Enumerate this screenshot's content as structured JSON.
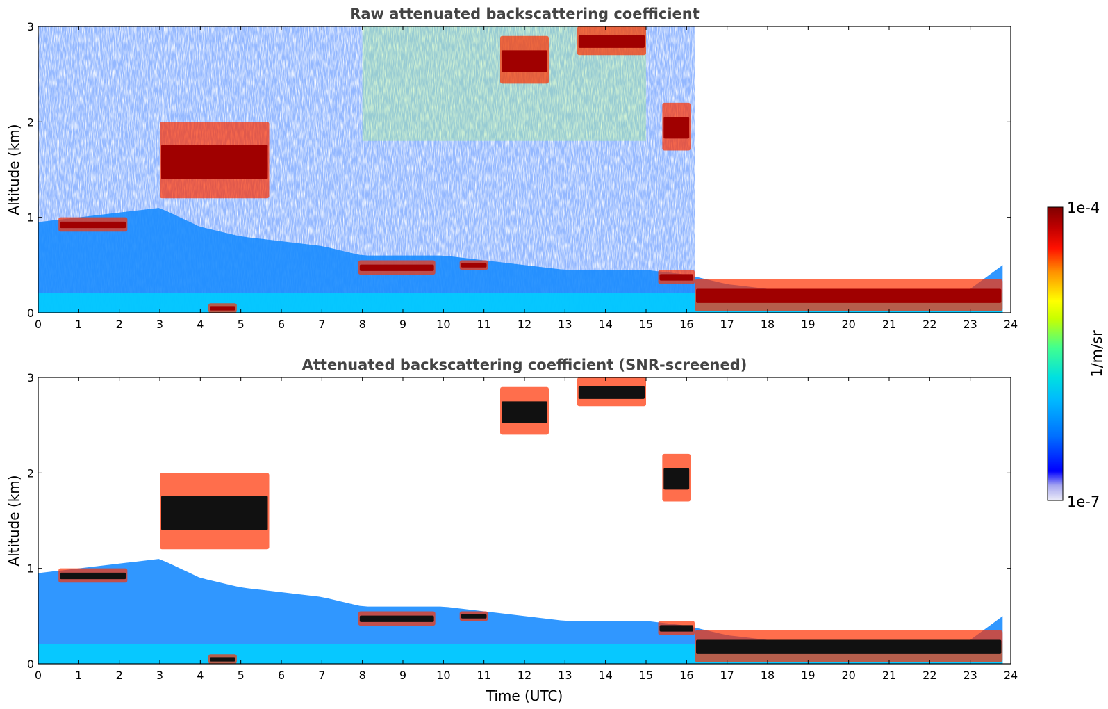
{
  "chart_data": [
    {
      "type": "heatmap",
      "title": "Raw attenuated backscattering coefficient",
      "xlabel": "",
      "ylabel": "Altitude (km)",
      "xlim": [
        0,
        24
      ],
      "ylim": [
        0,
        3
      ],
      "xticks": [
        "0",
        "1",
        "2",
        "3",
        "4",
        "5",
        "6",
        "7",
        "8",
        "9",
        "10",
        "11",
        "12",
        "13",
        "14",
        "15",
        "16",
        "17",
        "18",
        "19",
        "20",
        "21",
        "22",
        "23",
        "24"
      ],
      "yticks": [
        "0",
        "1",
        "2",
        "3"
      ],
      "color_scale": "log",
      "clim": [
        "1e-7",
        "1e-4"
      ],
      "features": {
        "boundary_layer_top_km": [
          [
            0,
            0.95
          ],
          [
            1,
            1.0
          ],
          [
            2,
            1.05
          ],
          [
            3,
            1.1
          ],
          [
            4,
            0.9
          ],
          [
            5,
            0.8
          ],
          [
            6,
            0.75
          ],
          [
            7,
            0.7
          ],
          [
            8,
            0.6
          ],
          [
            9,
            0.6
          ],
          [
            10,
            0.6
          ],
          [
            11,
            0.55
          ],
          [
            12,
            0.5
          ],
          [
            13,
            0.45
          ],
          [
            14,
            0.45
          ],
          [
            15,
            0.45
          ],
          [
            16,
            0.4
          ],
          [
            17,
            0.3
          ],
          [
            18,
            0.25
          ],
          [
            19,
            0.22
          ],
          [
            20,
            0.2
          ],
          [
            21,
            0.2
          ],
          [
            22,
            0.22
          ],
          [
            23,
            0.25
          ],
          [
            23.8,
            0.5
          ]
        ],
        "cloud_segments": [
          {
            "x0": 0.5,
            "x1": 2.2,
            "y0": 0.85,
            "y1": 1.0
          },
          {
            "x0": 3.0,
            "x1": 5.7,
            "y0": 1.2,
            "y1": 2.0
          },
          {
            "x0": 4.2,
            "x1": 4.9,
            "y0": 0.0,
            "y1": 0.1
          },
          {
            "x0": 7.9,
            "x1": 9.8,
            "y0": 0.4,
            "y1": 0.55
          },
          {
            "x0": 10.4,
            "x1": 11.1,
            "y0": 0.45,
            "y1": 0.55
          },
          {
            "x0": 11.4,
            "x1": 12.6,
            "y0": 2.4,
            "y1": 2.9
          },
          {
            "x0": 13.3,
            "x1": 15.0,
            "y0": 2.7,
            "y1": 3.0
          },
          {
            "x0": 15.4,
            "x1": 16.1,
            "y0": 1.7,
            "y1": 2.2
          },
          {
            "x0": 15.3,
            "x1": 16.2,
            "y0": 0.3,
            "y1": 0.45
          },
          {
            "x0": 16.2,
            "x1": 23.8,
            "y0": 0.02,
            "y1": 0.35
          }
        ]
      }
    },
    {
      "type": "heatmap",
      "title": "Attenuated backscattering coefficient (SNR-screened)",
      "xlabel": "Time (UTC)",
      "ylabel": "Altitude (km)",
      "xlim": [
        0,
        24
      ],
      "ylim": [
        0,
        3
      ],
      "xticks": [
        "0",
        "1",
        "2",
        "3",
        "4",
        "5",
        "6",
        "7",
        "8",
        "9",
        "10",
        "11",
        "12",
        "13",
        "14",
        "15",
        "16",
        "17",
        "18",
        "19",
        "20",
        "21",
        "22",
        "23",
        "24"
      ],
      "yticks": [
        "0",
        "1",
        "2",
        "3"
      ],
      "color_scale": "log",
      "clim": [
        "1e-7",
        "1e-4"
      ]
    }
  ],
  "colorbar": {
    "label": "1/m/sr",
    "max_label": "1e-4",
    "min_label": "1e-7",
    "colors": [
      "#e8e8f8",
      "#a0a0f0",
      "#0000ff",
      "#0080ff",
      "#00c0ff",
      "#00e0e0",
      "#40ff80",
      "#c0ff00",
      "#ffff00",
      "#ff8000",
      "#ff0000",
      "#c00000",
      "#800000"
    ]
  }
}
